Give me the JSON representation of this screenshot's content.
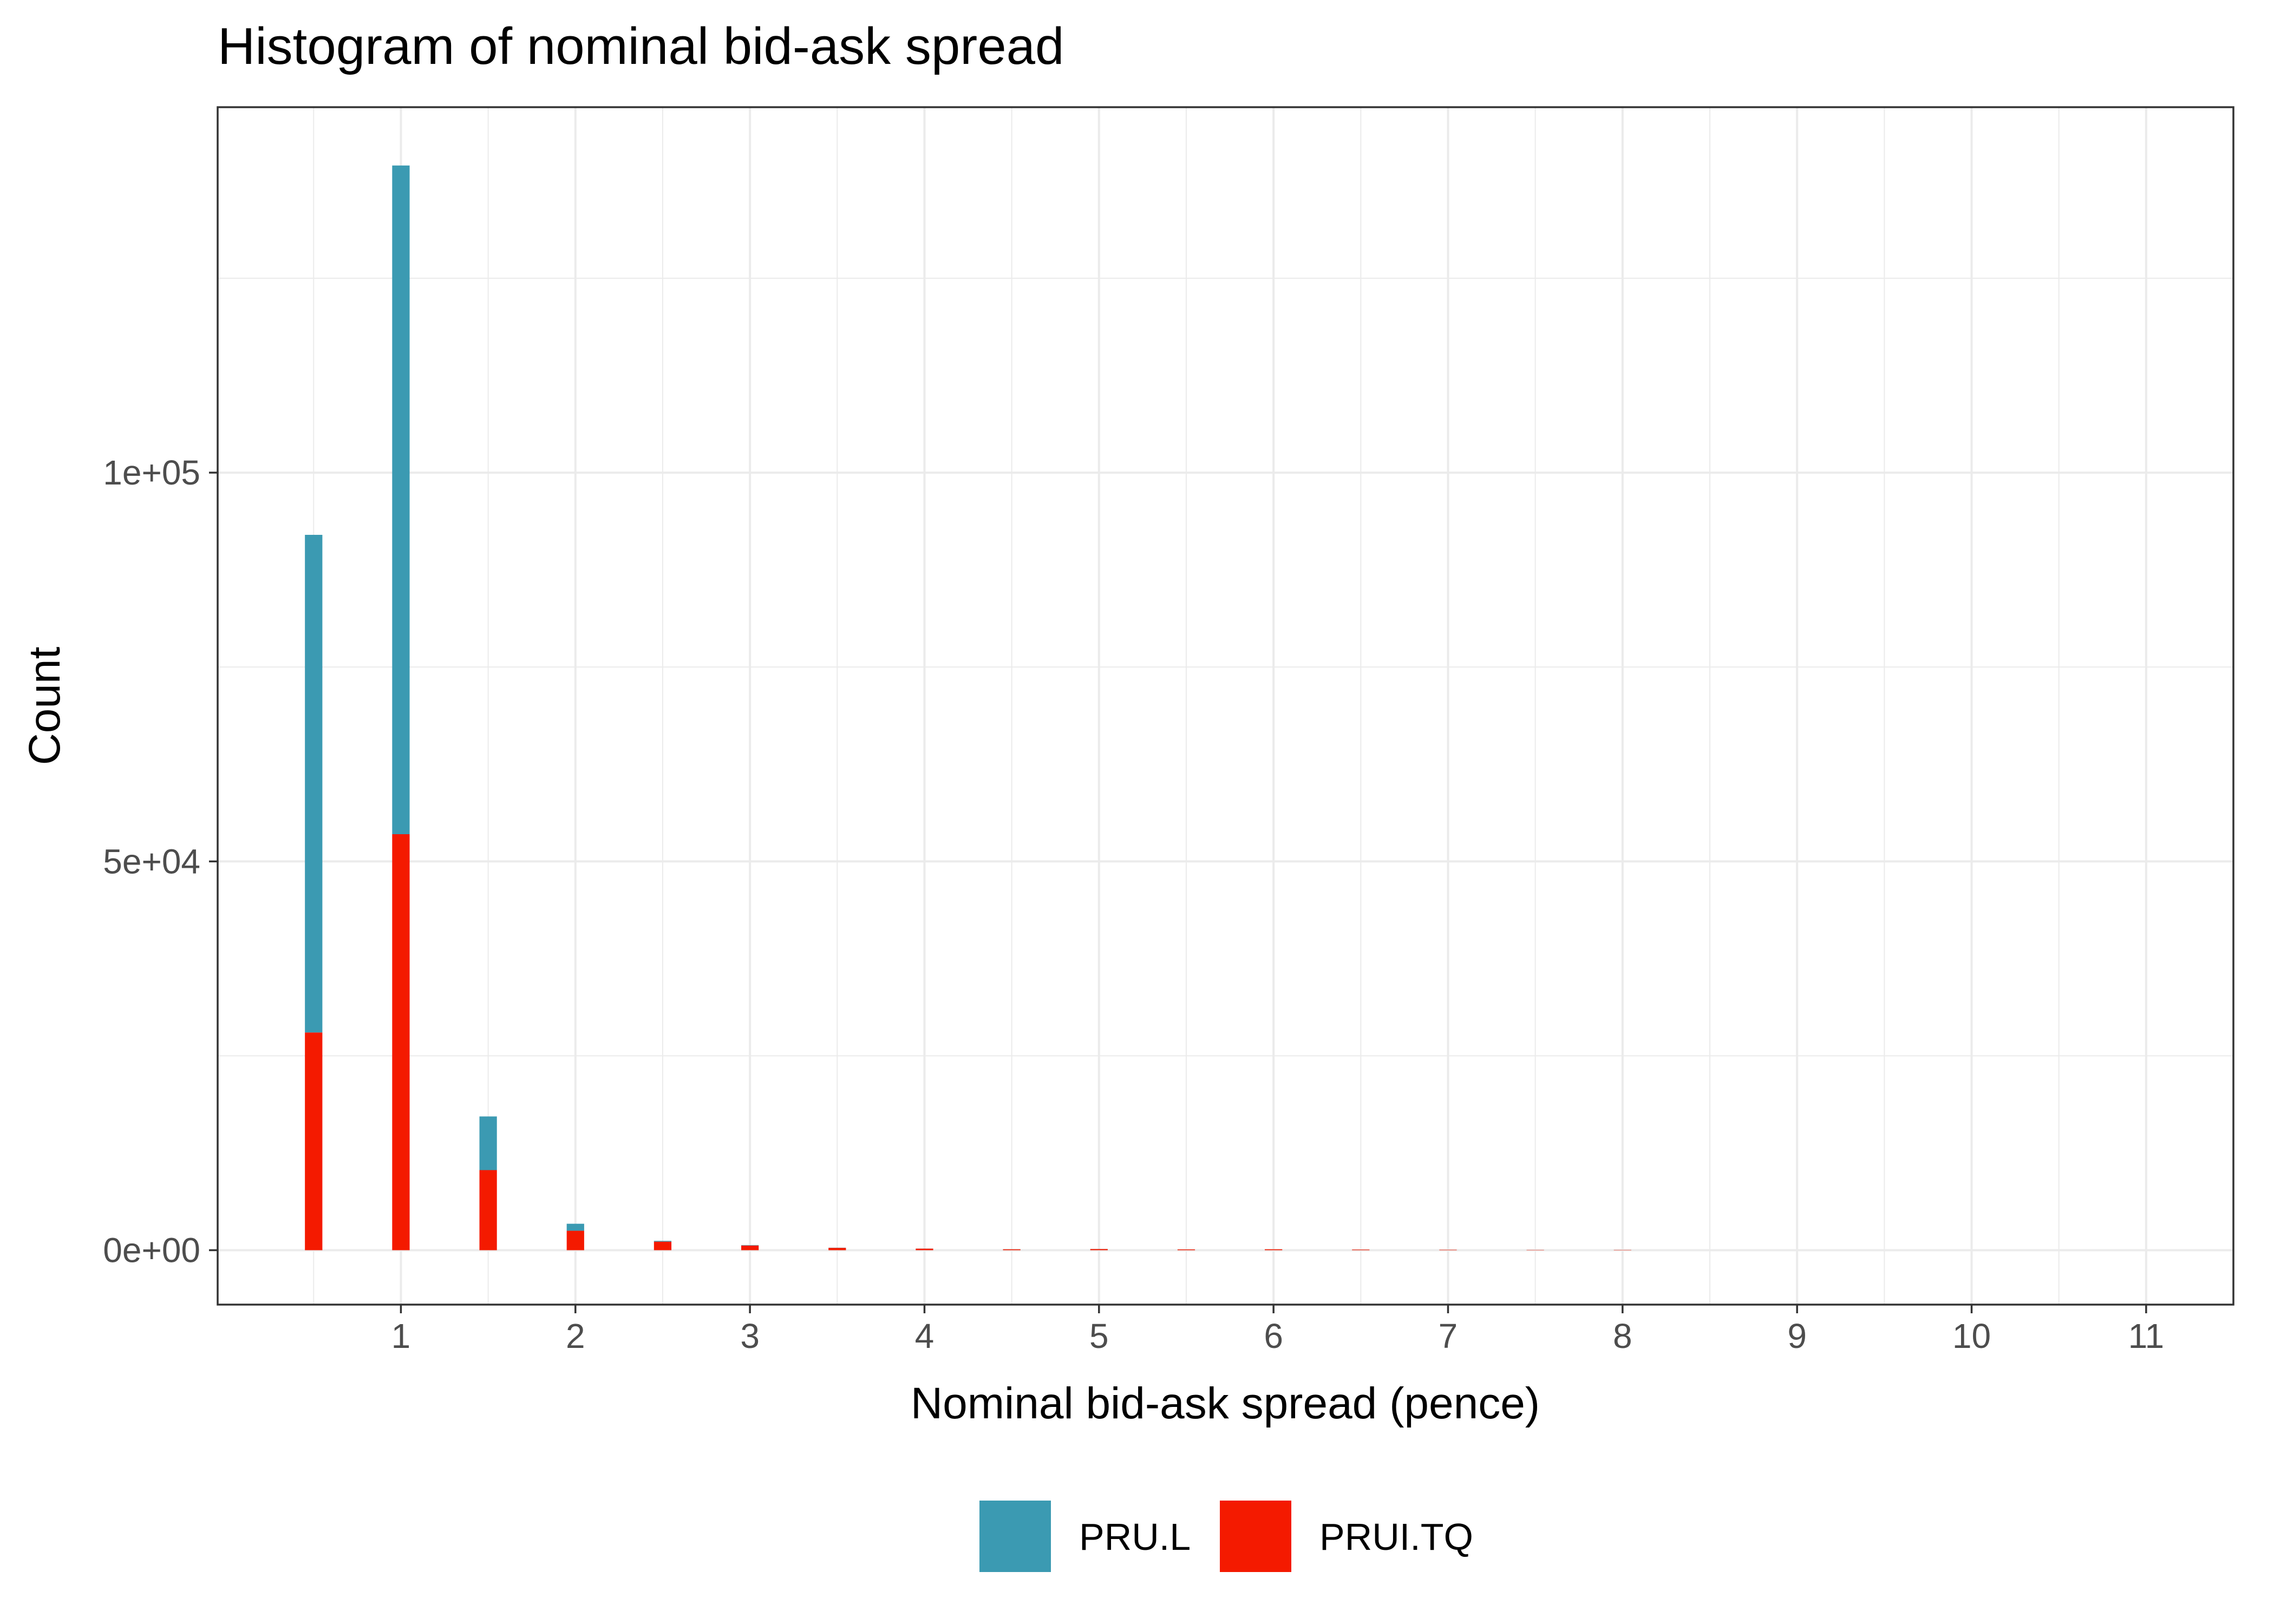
{
  "chart_data": {
    "type": "bar",
    "stacked": true,
    "title": "Histogram of nominal bid-ask spread",
    "xlabel": "Nominal bid-ask spread (pence)",
    "ylabel": "Count",
    "xlim": [
      -0.05,
      11.5
    ],
    "ylim": [
      -7000,
      147000
    ],
    "x_ticks": [
      1,
      2,
      3,
      4,
      5,
      6,
      7,
      8,
      9,
      10,
      11
    ],
    "x_tick_labels": [
      "1",
      "2",
      "3",
      "4",
      "5",
      "6",
      "7",
      "8",
      "9",
      "10",
      "11"
    ],
    "y_ticks": [
      0,
      50000,
      100000
    ],
    "y_tick_labels": [
      "0e+00",
      "5e+04",
      "1e+05"
    ],
    "bin_width": 0.1,
    "grid": true,
    "legend_position": "bottom",
    "x": [
      0.5,
      1.0,
      1.5,
      2.0,
      2.5,
      3.0,
      3.5,
      4.0,
      4.5,
      5.0,
      5.5,
      6.0,
      6.5,
      7.0,
      7.5,
      8.0
    ],
    "series": [
      {
        "name": "PRUI.TQ",
        "color": "#f41a00",
        "values": [
          28000,
          53500,
          10300,
          2500,
          1100,
          600,
          300,
          200,
          120,
          150,
          100,
          120,
          80,
          60,
          40,
          40
        ]
      },
      {
        "name": "PRU.L",
        "color": "#3b9ab2",
        "values": [
          64000,
          86000,
          6900,
          900,
          100,
          50,
          20,
          10,
          10,
          10,
          5,
          5,
          5,
          5,
          5,
          5
        ]
      }
    ],
    "legend": [
      {
        "name": "PRU.L",
        "color": "#3b9ab2"
      },
      {
        "name": "PRUI.TQ",
        "color": "#f41a00"
      }
    ]
  }
}
